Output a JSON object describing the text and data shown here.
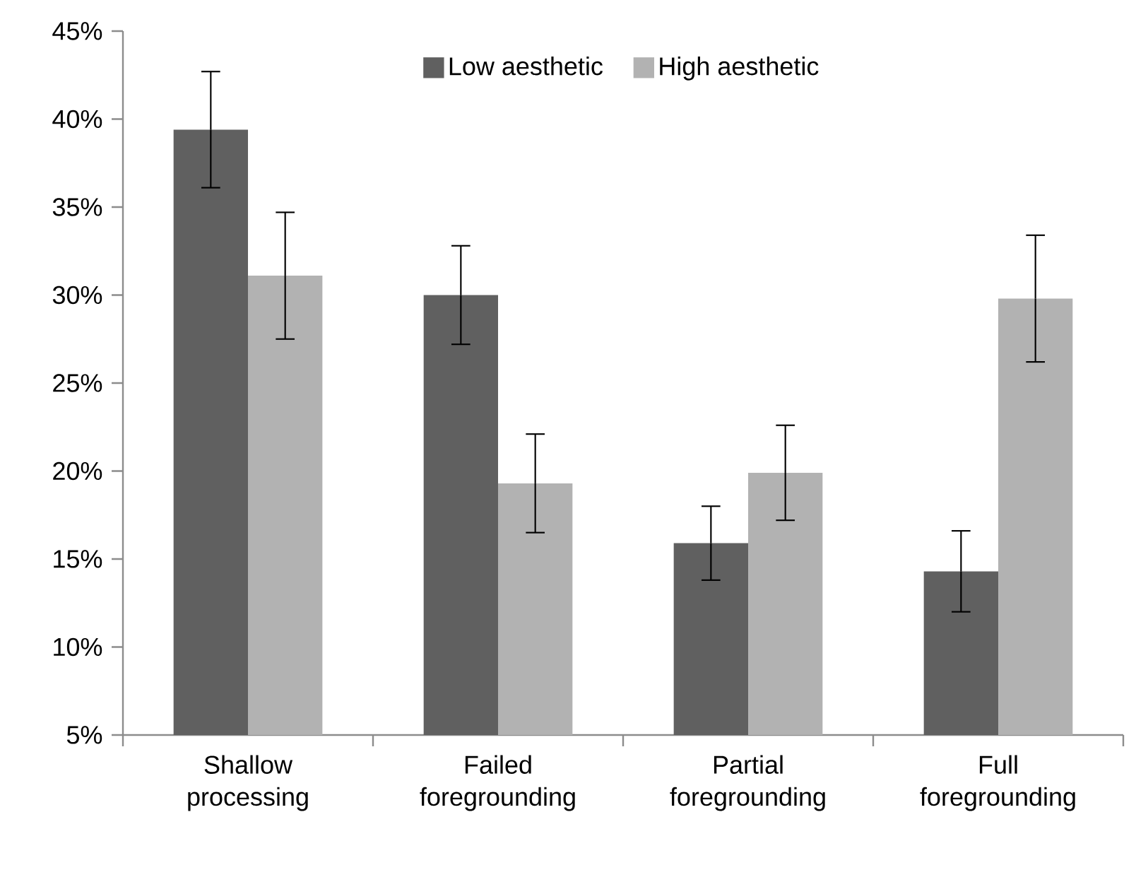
{
  "chart_data": {
    "type": "bar",
    "categories": [
      "Shallow processing",
      "Failed foregrounding",
      "Partial foregrounding",
      "Full foregrounding"
    ],
    "series": [
      {
        "name": "Low aesthetic",
        "color": "#606060",
        "values": [
          39.4,
          30.0,
          15.9,
          14.3
        ],
        "errors": [
          3.3,
          2.8,
          2.1,
          2.3
        ]
      },
      {
        "name": "High aesthetic",
        "color": "#b2b2b2",
        "values": [
          31.1,
          19.3,
          19.9,
          29.8
        ],
        "errors": [
          3.6,
          2.8,
          2.7,
          3.6
        ]
      }
    ],
    "ylim": [
      5,
      45
    ],
    "yticks": [
      {
        "value": 5,
        "label": "5%"
      },
      {
        "value": 10,
        "label": "10%"
      },
      {
        "value": 15,
        "label": "15%"
      },
      {
        "value": 20,
        "label": "20%"
      },
      {
        "value": 25,
        "label": "25%"
      },
      {
        "value": 30,
        "label": "30%"
      },
      {
        "value": 35,
        "label": "35%"
      },
      {
        "value": 40,
        "label": "40%"
      },
      {
        "value": 45,
        "label": "45%"
      }
    ],
    "legend": "top",
    "grid": false
  }
}
